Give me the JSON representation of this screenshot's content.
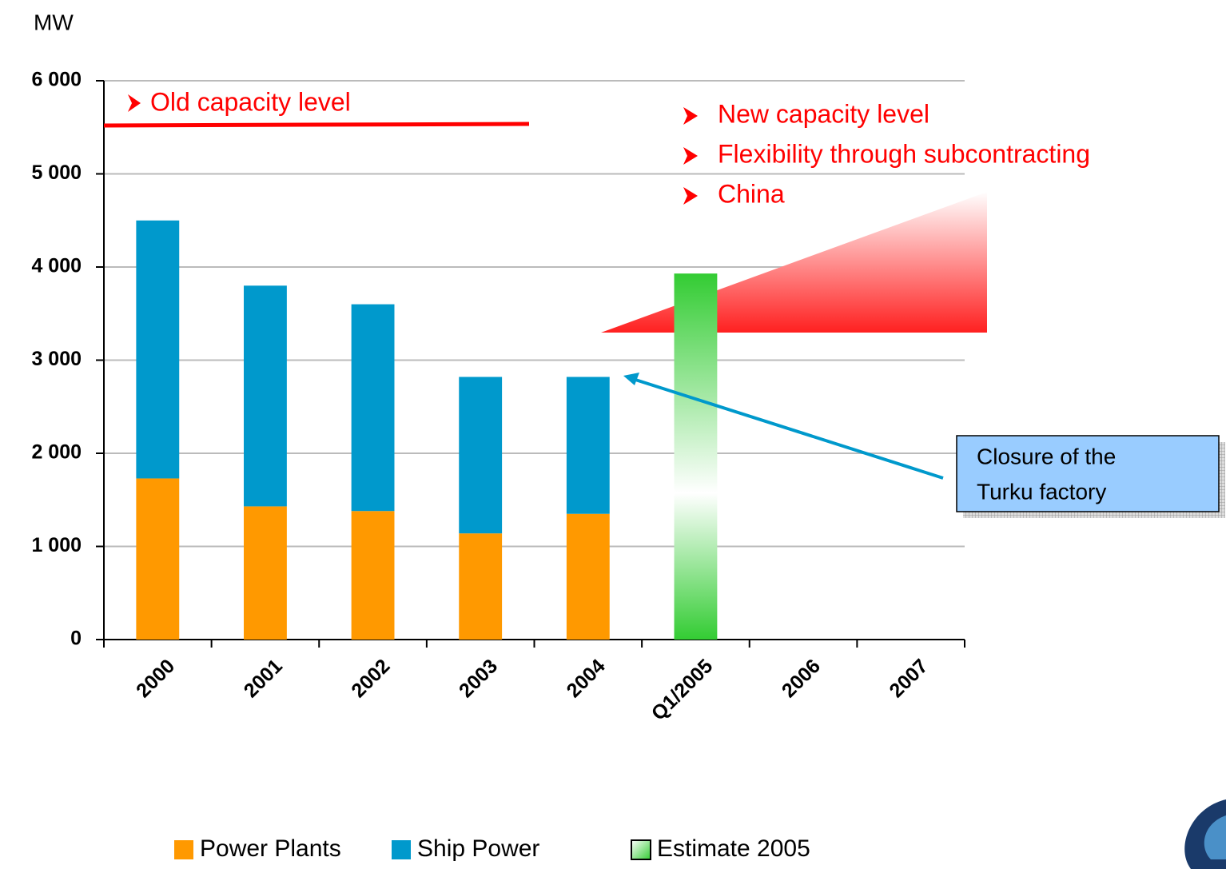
{
  "chart_data": {
    "type": "bar",
    "stacked": true,
    "y_label": "MW",
    "categories": [
      "2000",
      "2001",
      "2002",
      "2003",
      "2004",
      "Q1/2005",
      "2006",
      "2007"
    ],
    "series": [
      {
        "name": "Power Plants",
        "color": "#ff9900",
        "values": [
          1730,
          1430,
          1380,
          1140,
          1350,
          null,
          null,
          null
        ]
      },
      {
        "name": "Ship Power",
        "color": "#0099cc",
        "values": [
          2770,
          2370,
          2220,
          1680,
          1470,
          null,
          null,
          null
        ]
      },
      {
        "name": "Estimate 2005",
        "color": "#33cc33",
        "gradient": true,
        "values": [
          null,
          null,
          null,
          null,
          null,
          3930,
          null,
          null
        ]
      }
    ],
    "ylim": [
      0,
      6000
    ],
    "yticks": [
      0,
      {
        "value": 1000,
        "label": "1 000"
      },
      {
        "value": 2000,
        "label": "2 000"
      },
      {
        "value": 3000,
        "label": "3 000"
      },
      {
        "value": 4000,
        "label": "4 000"
      },
      {
        "value": 5000,
        "label": "5 000"
      },
      {
        "value": 6000,
        "label": "6 000"
      }
    ],
    "grid": true,
    "legend": "bottom",
    "annotations": {
      "old_capacity": "Old capacity level",
      "new_points": [
        "New capacity level",
        "Flexibility through subcontracting",
        "China"
      ],
      "callout": [
        "Closure of the",
        "Turku factory"
      ]
    }
  }
}
